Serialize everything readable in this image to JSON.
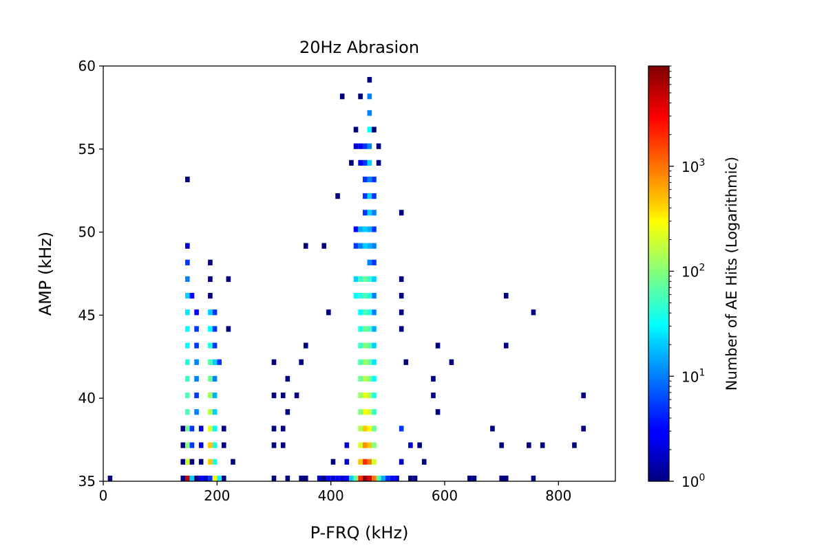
{
  "chart_data": {
    "type": "heatmap",
    "title": "20Hz Abrasion",
    "xlabel": "P-FRQ (kHz)",
    "ylabel": "AMP (kHz)",
    "xlim": [
      0,
      900
    ],
    "ylim": [
      35,
      60
    ],
    "x_ticks": [
      0,
      200,
      400,
      600,
      800
    ],
    "y_ticks": [
      35,
      40,
      45,
      50,
      55,
      60
    ],
    "bin_width_x": 8,
    "bin_height_y": 1,
    "grid": false,
    "colormap": "jet",
    "colorbar": {
      "label": "Number of AE Hits (Logarithmic)",
      "scale": "log",
      "range": [
        1,
        9000
      ],
      "ticks": [
        {
          "value": 1,
          "base": "10",
          "exp": "0"
        },
        {
          "value": 10,
          "base": "10",
          "exp": "1"
        },
        {
          "value": 100,
          "base": "10",
          "exp": "2"
        },
        {
          "value": 1000,
          "base": "10",
          "exp": "3"
        }
      ]
    },
    "cells": [
      [
        8,
        35,
        1
      ],
      [
        136,
        35,
        1
      ],
      [
        144,
        35,
        5000
      ],
      [
        152,
        35,
        20
      ],
      [
        160,
        35,
        1
      ],
      [
        168,
        35,
        3
      ],
      [
        176,
        35,
        2
      ],
      [
        184,
        35,
        5
      ],
      [
        192,
        35,
        300
      ],
      [
        200,
        35,
        30
      ],
      [
        208,
        35,
        1
      ],
      [
        296,
        35,
        1
      ],
      [
        320,
        35,
        1
      ],
      [
        344,
        35,
        1
      ],
      [
        352,
        35,
        1
      ],
      [
        376,
        35,
        2
      ],
      [
        384,
        35,
        1
      ],
      [
        392,
        35,
        3
      ],
      [
        400,
        35,
        2
      ],
      [
        408,
        35,
        3
      ],
      [
        416,
        35,
        2
      ],
      [
        424,
        35,
        3
      ],
      [
        432,
        35,
        20
      ],
      [
        440,
        35,
        80
      ],
      [
        448,
        35,
        2000
      ],
      [
        456,
        35,
        8000
      ],
      [
        464,
        35,
        4000
      ],
      [
        472,
        35,
        1000
      ],
      [
        480,
        35,
        60
      ],
      [
        488,
        35,
        15
      ],
      [
        496,
        35,
        5
      ],
      [
        504,
        35,
        3
      ],
      [
        512,
        35,
        2
      ],
      [
        536,
        35,
        1
      ],
      [
        544,
        35,
        1
      ],
      [
        640,
        35,
        1
      ],
      [
        648,
        35,
        1
      ],
      [
        696,
        35,
        1
      ],
      [
        704,
        35,
        1
      ],
      [
        752,
        35,
        1
      ],
      [
        136,
        36,
        1
      ],
      [
        144,
        36,
        200
      ],
      [
        152,
        36,
        1
      ],
      [
        168,
        36,
        1
      ],
      [
        184,
        36,
        500
      ],
      [
        192,
        36,
        40
      ],
      [
        224,
        36,
        1
      ],
      [
        400,
        36,
        1
      ],
      [
        424,
        36,
        2
      ],
      [
        448,
        36,
        500
      ],
      [
        456,
        36,
        2000
      ],
      [
        464,
        36,
        1000
      ],
      [
        472,
        36,
        200
      ],
      [
        520,
        36,
        2
      ],
      [
        560,
        36,
        1
      ],
      [
        136,
        37,
        1
      ],
      [
        144,
        37,
        100
      ],
      [
        152,
        37,
        5
      ],
      [
        168,
        37,
        2
      ],
      [
        184,
        37,
        500
      ],
      [
        192,
        37,
        40
      ],
      [
        208,
        37,
        1
      ],
      [
        296,
        37,
        1
      ],
      [
        312,
        37,
        1
      ],
      [
        424,
        37,
        2
      ],
      [
        448,
        37,
        200
      ],
      [
        456,
        37,
        800
      ],
      [
        464,
        37,
        500
      ],
      [
        472,
        37,
        100
      ],
      [
        536,
        37,
        2
      ],
      [
        552,
        37,
        1
      ],
      [
        696,
        37,
        1
      ],
      [
        744,
        37,
        1
      ],
      [
        768,
        37,
        1
      ],
      [
        824,
        37,
        1
      ],
      [
        136,
        38,
        1
      ],
      [
        144,
        38,
        80
      ],
      [
        152,
        38,
        5
      ],
      [
        168,
        38,
        2
      ],
      [
        184,
        38,
        200
      ],
      [
        192,
        38,
        30
      ],
      [
        208,
        38,
        1
      ],
      [
        296,
        38,
        1
      ],
      [
        312,
        38,
        1
      ],
      [
        448,
        38,
        150
      ],
      [
        456,
        38,
        500
      ],
      [
        464,
        38,
        300
      ],
      [
        472,
        38,
        80
      ],
      [
        520,
        38,
        5
      ],
      [
        680,
        38,
        1
      ],
      [
        840,
        38,
        1
      ],
      [
        144,
        39,
        60
      ],
      [
        160,
        39,
        10
      ],
      [
        184,
        39,
        150
      ],
      [
        192,
        39,
        20
      ],
      [
        320,
        39,
        1
      ],
      [
        448,
        39,
        100
      ],
      [
        456,
        39,
        300
      ],
      [
        464,
        39,
        200
      ],
      [
        472,
        39,
        50
      ],
      [
        584,
        39,
        1
      ],
      [
        144,
        40,
        60
      ],
      [
        160,
        40,
        5
      ],
      [
        184,
        40,
        120
      ],
      [
        192,
        40,
        15
      ],
      [
        296,
        40,
        1
      ],
      [
        312,
        40,
        1
      ],
      [
        336,
        40,
        1
      ],
      [
        448,
        40,
        120
      ],
      [
        456,
        40,
        250
      ],
      [
        464,
        40,
        150
      ],
      [
        472,
        40,
        40
      ],
      [
        576,
        40,
        1
      ],
      [
        840,
        40,
        1
      ],
      [
        144,
        41,
        50
      ],
      [
        160,
        41,
        10
      ],
      [
        184,
        41,
        80
      ],
      [
        192,
        41,
        10
      ],
      [
        320,
        41,
        1
      ],
      [
        448,
        41,
        80
      ],
      [
        456,
        41,
        150
      ],
      [
        464,
        41,
        100
      ],
      [
        472,
        41,
        30
      ],
      [
        576,
        41,
        1
      ],
      [
        144,
        42,
        40
      ],
      [
        160,
        42,
        10
      ],
      [
        184,
        42,
        60
      ],
      [
        192,
        42,
        20
      ],
      [
        200,
        42,
        5
      ],
      [
        296,
        42,
        1
      ],
      [
        344,
        42,
        1
      ],
      [
        448,
        42,
        60
      ],
      [
        456,
        42,
        120
      ],
      [
        464,
        42,
        80
      ],
      [
        472,
        42,
        25
      ],
      [
        528,
        42,
        1
      ],
      [
        608,
        42,
        1
      ],
      [
        144,
        43,
        30
      ],
      [
        160,
        43,
        5
      ],
      [
        184,
        43,
        40
      ],
      [
        192,
        43,
        5
      ],
      [
        352,
        43,
        1
      ],
      [
        448,
        43,
        50
      ],
      [
        456,
        43,
        100
      ],
      [
        464,
        43,
        70
      ],
      [
        472,
        43,
        20
      ],
      [
        584,
        43,
        1
      ],
      [
        704,
        43,
        1
      ],
      [
        144,
        44,
        30
      ],
      [
        160,
        44,
        5
      ],
      [
        184,
        44,
        30
      ],
      [
        192,
        44,
        5
      ],
      [
        216,
        44,
        1
      ],
      [
        448,
        44,
        40
      ],
      [
        456,
        44,
        80
      ],
      [
        464,
        44,
        60
      ],
      [
        472,
        44,
        15
      ],
      [
        520,
        44,
        1
      ],
      [
        144,
        45,
        25
      ],
      [
        160,
        45,
        3
      ],
      [
        184,
        45,
        20
      ],
      [
        192,
        45,
        5
      ],
      [
        392,
        45,
        1
      ],
      [
        448,
        45,
        30
      ],
      [
        456,
        45,
        60
      ],
      [
        464,
        45,
        40
      ],
      [
        472,
        45,
        10
      ],
      [
        520,
        45,
        1
      ],
      [
        752,
        45,
        1
      ],
      [
        144,
        46,
        20
      ],
      [
        152,
        46,
        3
      ],
      [
        184,
        46,
        1
      ],
      [
        440,
        46,
        30
      ],
      [
        448,
        46,
        40
      ],
      [
        456,
        46,
        60
      ],
      [
        464,
        46,
        40
      ],
      [
        472,
        46,
        10
      ],
      [
        520,
        46,
        1
      ],
      [
        704,
        46,
        1
      ],
      [
        144,
        47,
        10
      ],
      [
        184,
        47,
        1
      ],
      [
        216,
        47,
        1
      ],
      [
        440,
        47,
        20
      ],
      [
        448,
        47,
        50
      ],
      [
        456,
        47,
        80
      ],
      [
        464,
        47,
        50
      ],
      [
        472,
        47,
        20
      ],
      [
        520,
        47,
        1
      ],
      [
        144,
        48,
        5
      ],
      [
        184,
        48,
        1
      ],
      [
        464,
        48,
        10
      ],
      [
        472,
        48,
        5
      ],
      [
        144,
        49,
        2
      ],
      [
        352,
        49,
        1
      ],
      [
        384,
        49,
        1
      ],
      [
        440,
        49,
        5
      ],
      [
        448,
        49,
        10
      ],
      [
        456,
        49,
        20
      ],
      [
        464,
        49,
        15
      ],
      [
        472,
        49,
        10
      ],
      [
        440,
        50,
        3
      ],
      [
        448,
        50,
        15
      ],
      [
        456,
        50,
        20
      ],
      [
        464,
        50,
        15
      ],
      [
        472,
        50,
        5
      ],
      [
        456,
        51,
        5
      ],
      [
        464,
        51,
        20
      ],
      [
        472,
        51,
        10
      ],
      [
        520,
        51,
        1
      ],
      [
        408,
        52,
        1
      ],
      [
        456,
        52,
        5
      ],
      [
        464,
        52,
        20
      ],
      [
        472,
        52,
        5
      ],
      [
        144,
        53,
        1
      ],
      [
        456,
        53,
        5
      ],
      [
        464,
        53,
        10
      ],
      [
        472,
        53,
        5
      ],
      [
        432,
        54,
        1
      ],
      [
        448,
        54,
        3
      ],
      [
        456,
        54,
        5
      ],
      [
        464,
        54,
        20
      ],
      [
        480,
        54,
        1
      ],
      [
        440,
        55,
        2
      ],
      [
        448,
        55,
        3
      ],
      [
        456,
        55,
        5
      ],
      [
        464,
        55,
        10
      ],
      [
        480,
        55,
        1
      ],
      [
        440,
        56,
        1
      ],
      [
        464,
        56,
        30
      ],
      [
        472,
        56,
        1
      ],
      [
        464,
        57,
        10
      ],
      [
        416,
        58,
        1
      ],
      [
        448,
        58,
        1
      ],
      [
        464,
        58,
        10
      ],
      [
        464,
        59,
        1
      ]
    ]
  }
}
